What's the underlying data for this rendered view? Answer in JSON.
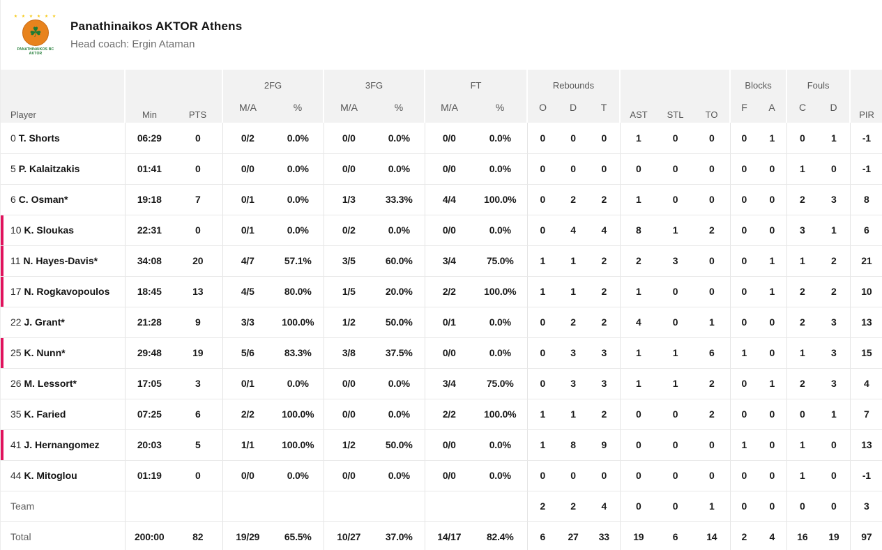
{
  "header": {
    "team_name": "Panathinaikos AKTOR Athens",
    "coach": "Head coach: Ergin Ataman",
    "logo_caption": "PANATHINAIKOS BC\nAKTOR",
    "logo_icon": "clover-basketball-logo",
    "logo_stars": "★ ★ ★ ★ ★ ★"
  },
  "colors": {
    "on_court_accent": "#e0125c",
    "table_header_bg": "#f2f2f2",
    "grid_border": "#e4e4e4",
    "logo_orange": "#e8831d",
    "logo_green": "#1e7a34"
  },
  "table": {
    "header": {
      "player": "Player",
      "min": "Min",
      "pts": "PTS",
      "groups": {
        "fg2": "2FG",
        "fg3": "3FG",
        "ft": "FT",
        "rebounds": "Rebounds",
        "blocks": "Blocks",
        "fouls": "Fouls"
      },
      "sub": {
        "ma": "M/A",
        "pct": "%",
        "o": "O",
        "d": "D",
        "t": "T",
        "ast": "AST",
        "stl": "STL",
        "to": "TO",
        "f": "F",
        "a": "A",
        "c": "C",
        "d2": "D",
        "pir": "PIR"
      }
    },
    "rows": [
      {
        "num": "0",
        "name": "T. Shorts",
        "on_court": false,
        "min": "06:29",
        "pts": "0",
        "fg2_ma": "0/2",
        "fg2_pct": "0.0%",
        "fg3_ma": "0/0",
        "fg3_pct": "0.0%",
        "ft_ma": "0/0",
        "ft_pct": "0.0%",
        "reb_o": "0",
        "reb_d": "0",
        "reb_t": "0",
        "ast": "1",
        "stl": "0",
        "to": "0",
        "blk_f": "0",
        "blk_a": "1",
        "foul_c": "0",
        "foul_d": "1",
        "pir": "-1"
      },
      {
        "num": "5",
        "name": "P. Kalaitzakis",
        "on_court": false,
        "min": "01:41",
        "pts": "0",
        "fg2_ma": "0/0",
        "fg2_pct": "0.0%",
        "fg3_ma": "0/0",
        "fg3_pct": "0.0%",
        "ft_ma": "0/0",
        "ft_pct": "0.0%",
        "reb_o": "0",
        "reb_d": "0",
        "reb_t": "0",
        "ast": "0",
        "stl": "0",
        "to": "0",
        "blk_f": "0",
        "blk_a": "0",
        "foul_c": "1",
        "foul_d": "0",
        "pir": "-1"
      },
      {
        "num": "6",
        "name": "C. Osman*",
        "on_court": false,
        "min": "19:18",
        "pts": "7",
        "fg2_ma": "0/1",
        "fg2_pct": "0.0%",
        "fg3_ma": "1/3",
        "fg3_pct": "33.3%",
        "ft_ma": "4/4",
        "ft_pct": "100.0%",
        "reb_o": "0",
        "reb_d": "2",
        "reb_t": "2",
        "ast": "1",
        "stl": "0",
        "to": "0",
        "blk_f": "0",
        "blk_a": "0",
        "foul_c": "2",
        "foul_d": "3",
        "pir": "8"
      },
      {
        "num": "10",
        "name": "K. Sloukas",
        "on_court": true,
        "min": "22:31",
        "pts": "0",
        "fg2_ma": "0/1",
        "fg2_pct": "0.0%",
        "fg3_ma": "0/2",
        "fg3_pct": "0.0%",
        "ft_ma": "0/0",
        "ft_pct": "0.0%",
        "reb_o": "0",
        "reb_d": "4",
        "reb_t": "4",
        "ast": "8",
        "stl": "1",
        "to": "2",
        "blk_f": "0",
        "blk_a": "0",
        "foul_c": "3",
        "foul_d": "1",
        "pir": "6"
      },
      {
        "num": "11",
        "name": "N. Hayes-Davis*",
        "on_court": true,
        "min": "34:08",
        "pts": "20",
        "fg2_ma": "4/7",
        "fg2_pct": "57.1%",
        "fg3_ma": "3/5",
        "fg3_pct": "60.0%",
        "ft_ma": "3/4",
        "ft_pct": "75.0%",
        "reb_o": "1",
        "reb_d": "1",
        "reb_t": "2",
        "ast": "2",
        "stl": "3",
        "to": "0",
        "blk_f": "0",
        "blk_a": "1",
        "foul_c": "1",
        "foul_d": "2",
        "pir": "21"
      },
      {
        "num": "17",
        "name": "N. Rogkavopoulos",
        "on_court": true,
        "min": "18:45",
        "pts": "13",
        "fg2_ma": "4/5",
        "fg2_pct": "80.0%",
        "fg3_ma": "1/5",
        "fg3_pct": "20.0%",
        "ft_ma": "2/2",
        "ft_pct": "100.0%",
        "reb_o": "1",
        "reb_d": "1",
        "reb_t": "2",
        "ast": "1",
        "stl": "0",
        "to": "0",
        "blk_f": "0",
        "blk_a": "1",
        "foul_c": "2",
        "foul_d": "2",
        "pir": "10"
      },
      {
        "num": "22",
        "name": "J. Grant*",
        "on_court": false,
        "min": "21:28",
        "pts": "9",
        "fg2_ma": "3/3",
        "fg2_pct": "100.0%",
        "fg3_ma": "1/2",
        "fg3_pct": "50.0%",
        "ft_ma": "0/1",
        "ft_pct": "0.0%",
        "reb_o": "0",
        "reb_d": "2",
        "reb_t": "2",
        "ast": "4",
        "stl": "0",
        "to": "1",
        "blk_f": "0",
        "blk_a": "0",
        "foul_c": "2",
        "foul_d": "3",
        "pir": "13"
      },
      {
        "num": "25",
        "name": "K. Nunn*",
        "on_court": true,
        "min": "29:48",
        "pts": "19",
        "fg2_ma": "5/6",
        "fg2_pct": "83.3%",
        "fg3_ma": "3/8",
        "fg3_pct": "37.5%",
        "ft_ma": "0/0",
        "ft_pct": "0.0%",
        "reb_o": "0",
        "reb_d": "3",
        "reb_t": "3",
        "ast": "1",
        "stl": "1",
        "to": "6",
        "blk_f": "1",
        "blk_a": "0",
        "foul_c": "1",
        "foul_d": "3",
        "pir": "15"
      },
      {
        "num": "26",
        "name": "M. Lessort*",
        "on_court": false,
        "min": "17:05",
        "pts": "3",
        "fg2_ma": "0/1",
        "fg2_pct": "0.0%",
        "fg3_ma": "0/0",
        "fg3_pct": "0.0%",
        "ft_ma": "3/4",
        "ft_pct": "75.0%",
        "reb_o": "0",
        "reb_d": "3",
        "reb_t": "3",
        "ast": "1",
        "stl": "1",
        "to": "2",
        "blk_f": "0",
        "blk_a": "1",
        "foul_c": "2",
        "foul_d": "3",
        "pir": "4"
      },
      {
        "num": "35",
        "name": "K. Faried",
        "on_court": false,
        "min": "07:25",
        "pts": "6",
        "fg2_ma": "2/2",
        "fg2_pct": "100.0%",
        "fg3_ma": "0/0",
        "fg3_pct": "0.0%",
        "ft_ma": "2/2",
        "ft_pct": "100.0%",
        "reb_o": "1",
        "reb_d": "1",
        "reb_t": "2",
        "ast": "0",
        "stl": "0",
        "to": "2",
        "blk_f": "0",
        "blk_a": "0",
        "foul_c": "0",
        "foul_d": "1",
        "pir": "7"
      },
      {
        "num": "41",
        "name": "J. Hernangomez",
        "on_court": true,
        "min": "20:03",
        "pts": "5",
        "fg2_ma": "1/1",
        "fg2_pct": "100.0%",
        "fg3_ma": "1/2",
        "fg3_pct": "50.0%",
        "ft_ma": "0/0",
        "ft_pct": "0.0%",
        "reb_o": "1",
        "reb_d": "8",
        "reb_t": "9",
        "ast": "0",
        "stl": "0",
        "to": "0",
        "blk_f": "1",
        "blk_a": "0",
        "foul_c": "1",
        "foul_d": "0",
        "pir": "13"
      },
      {
        "num": "44",
        "name": "K. Mitoglou",
        "on_court": false,
        "min": "01:19",
        "pts": "0",
        "fg2_ma": "0/0",
        "fg2_pct": "0.0%",
        "fg3_ma": "0/0",
        "fg3_pct": "0.0%",
        "ft_ma": "0/0",
        "ft_pct": "0.0%",
        "reb_o": "0",
        "reb_d": "0",
        "reb_t": "0",
        "ast": "0",
        "stl": "0",
        "to": "0",
        "blk_f": "0",
        "blk_a": "0",
        "foul_c": "1",
        "foul_d": "0",
        "pir": "-1"
      }
    ],
    "summary_rows": [
      {
        "label": "Team",
        "min": "",
        "pts": "",
        "fg2_ma": "",
        "fg2_pct": "",
        "fg3_ma": "",
        "fg3_pct": "",
        "ft_ma": "",
        "ft_pct": "",
        "reb_o": "2",
        "reb_d": "2",
        "reb_t": "4",
        "ast": "0",
        "stl": "0",
        "to": "1",
        "blk_f": "0",
        "blk_a": "0",
        "foul_c": "0",
        "foul_d": "0",
        "pir": "3"
      },
      {
        "label": "Total",
        "min": "200:00",
        "pts": "82",
        "fg2_ma": "19/29",
        "fg2_pct": "65.5%",
        "fg3_ma": "10/27",
        "fg3_pct": "37.0%",
        "ft_ma": "14/17",
        "ft_pct": "82.4%",
        "reb_o": "6",
        "reb_d": "27",
        "reb_t": "33",
        "ast": "19",
        "stl": "6",
        "to": "14",
        "blk_f": "2",
        "blk_a": "4",
        "foul_c": "16",
        "foul_d": "19",
        "pir": "97"
      }
    ]
  }
}
